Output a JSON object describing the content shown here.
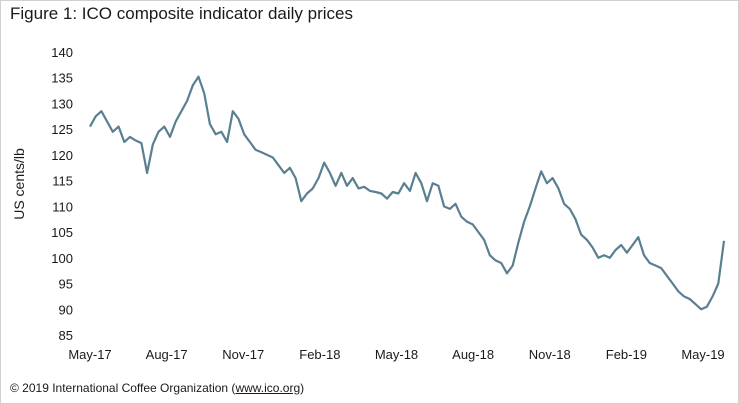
{
  "chart_data": {
    "type": "line",
    "title": "Figure 1: ICO composite indicator daily prices",
    "ylabel": "US cents/lb",
    "xlabel": "",
    "ylim": [
      85,
      140
    ],
    "yticks": [
      85,
      90,
      95,
      100,
      105,
      110,
      115,
      120,
      125,
      130,
      135,
      140
    ],
    "xticks": [
      "May-17",
      "Aug-17",
      "Nov-17",
      "Feb-18",
      "May-18",
      "Aug-18",
      "Nov-18",
      "Feb-19",
      "May-19"
    ],
    "grid": false,
    "legend": "none",
    "line_color": "#5a7f91",
    "series": [
      {
        "points": [
          [
            "May-17",
            125.5
          ],
          [
            "May-17",
            127.5
          ],
          [
            "May-17",
            128.5
          ],
          [
            "May-17",
            126.5
          ],
          [
            "Jun-17",
            124.5
          ],
          [
            "Jun-17",
            125.5
          ],
          [
            "Jun-17",
            122.5
          ],
          [
            "Jun-17",
            123.5
          ],
          [
            "Jun-17",
            122.8
          ],
          [
            "Jul-17",
            122.3
          ],
          [
            "Jul-17",
            116.5
          ],
          [
            "Jul-17",
            122.0
          ],
          [
            "Jul-17",
            124.5
          ],
          [
            "Jul-17",
            125.5
          ],
          [
            "Aug-17",
            123.5
          ],
          [
            "Aug-17",
            126.5
          ],
          [
            "Aug-17",
            128.5
          ],
          [
            "Aug-17",
            130.5
          ],
          [
            "Aug-17",
            133.5
          ],
          [
            "Aug-17",
            135.2
          ],
          [
            "Sep-17",
            132.0
          ],
          [
            "Sep-17",
            126.0
          ],
          [
            "Sep-17",
            124.0
          ],
          [
            "Sep-17",
            124.5
          ],
          [
            "Sep-17",
            122.5
          ],
          [
            "Oct-17",
            128.5
          ],
          [
            "Oct-17",
            127.0
          ],
          [
            "Oct-17",
            124.0
          ],
          [
            "Oct-17",
            122.5
          ],
          [
            "Oct-17",
            121.0
          ],
          [
            "Nov-17",
            120.5
          ],
          [
            "Nov-17",
            120.0
          ],
          [
            "Nov-17",
            119.5
          ],
          [
            "Nov-17",
            118.0
          ],
          [
            "Dec-17",
            116.5
          ],
          [
            "Dec-17",
            117.5
          ],
          [
            "Dec-17",
            115.5
          ],
          [
            "Dec-17",
            111.0
          ],
          [
            "Jan-18",
            112.5
          ],
          [
            "Jan-18",
            113.5
          ],
          [
            "Jan-18",
            115.5
          ],
          [
            "Jan-18",
            118.5
          ],
          [
            "Feb-18",
            116.5
          ],
          [
            "Feb-18",
            114.0
          ],
          [
            "Feb-18",
            116.5
          ],
          [
            "Feb-18",
            114.0
          ],
          [
            "Mar-18",
            115.5
          ],
          [
            "Mar-18",
            113.5
          ],
          [
            "Mar-18",
            113.8
          ],
          [
            "Mar-18",
            113.0
          ],
          [
            "Apr-18",
            112.8
          ],
          [
            "Apr-18",
            112.5
          ],
          [
            "Apr-18",
            111.5
          ],
          [
            "Apr-18",
            112.8
          ],
          [
            "May-18",
            112.5
          ],
          [
            "May-18",
            114.5
          ],
          [
            "May-18",
            113.0
          ],
          [
            "May-18",
            116.5
          ],
          [
            "Jun-18",
            114.5
          ],
          [
            "Jun-18",
            111.0
          ],
          [
            "Jun-18",
            114.5
          ],
          [
            "Jun-18",
            114.0
          ],
          [
            "Jul-18",
            110.0
          ],
          [
            "Jul-18",
            109.5
          ],
          [
            "Jul-18",
            110.5
          ],
          [
            "Jul-18",
            108.0
          ],
          [
            "Aug-18",
            107.0
          ],
          [
            "Aug-18",
            106.5
          ],
          [
            "Aug-18",
            105.0
          ],
          [
            "Aug-18",
            103.5
          ],
          [
            "Sep-18",
            100.5
          ],
          [
            "Sep-18",
            99.5
          ],
          [
            "Sep-18",
            99.0
          ],
          [
            "Sep-18",
            97.0
          ],
          [
            "Oct-18",
            98.5
          ],
          [
            "Oct-18",
            103.0
          ],
          [
            "Oct-18",
            107.0
          ],
          [
            "Oct-18",
            110.0
          ],
          [
            "Oct-18",
            113.5
          ],
          [
            "Oct-18",
            116.8
          ],
          [
            "Nov-18",
            114.5
          ],
          [
            "Nov-18",
            115.5
          ],
          [
            "Nov-18",
            113.5
          ],
          [
            "Nov-18",
            110.5
          ],
          [
            "Nov-18",
            109.5
          ],
          [
            "Dec-18",
            107.5
          ],
          [
            "Dec-18",
            104.5
          ],
          [
            "Dec-18",
            103.5
          ],
          [
            "Dec-18",
            102.0
          ],
          [
            "Jan-19",
            100.0
          ],
          [
            "Jan-19",
            100.5
          ],
          [
            "Jan-19",
            100.0
          ],
          [
            "Jan-19",
            101.5
          ],
          [
            "Feb-19",
            102.5
          ],
          [
            "Feb-19",
            101.0
          ],
          [
            "Feb-19",
            102.5
          ],
          [
            "Feb-19",
            104.0
          ],
          [
            "Mar-19",
            100.5
          ],
          [
            "Mar-19",
            99.0
          ],
          [
            "Mar-19",
            98.5
          ],
          [
            "Mar-19",
            98.0
          ],
          [
            "Apr-19",
            96.5
          ],
          [
            "Apr-19",
            95.0
          ],
          [
            "Apr-19",
            93.5
          ],
          [
            "Apr-19",
            92.5
          ],
          [
            "Apr-19",
            92.0
          ],
          [
            "May-19",
            91.0
          ],
          [
            "May-19",
            90.0
          ],
          [
            "May-19",
            90.5
          ],
          [
            "May-19",
            92.5
          ],
          [
            "May-19",
            95.0
          ],
          [
            "May-19",
            103.3
          ]
        ]
      }
    ]
  },
  "footer": {
    "credit_prefix": "© 2019 International Coffee Organization (",
    "credit_link": "www.ico.org",
    "credit_suffix": ")"
  }
}
